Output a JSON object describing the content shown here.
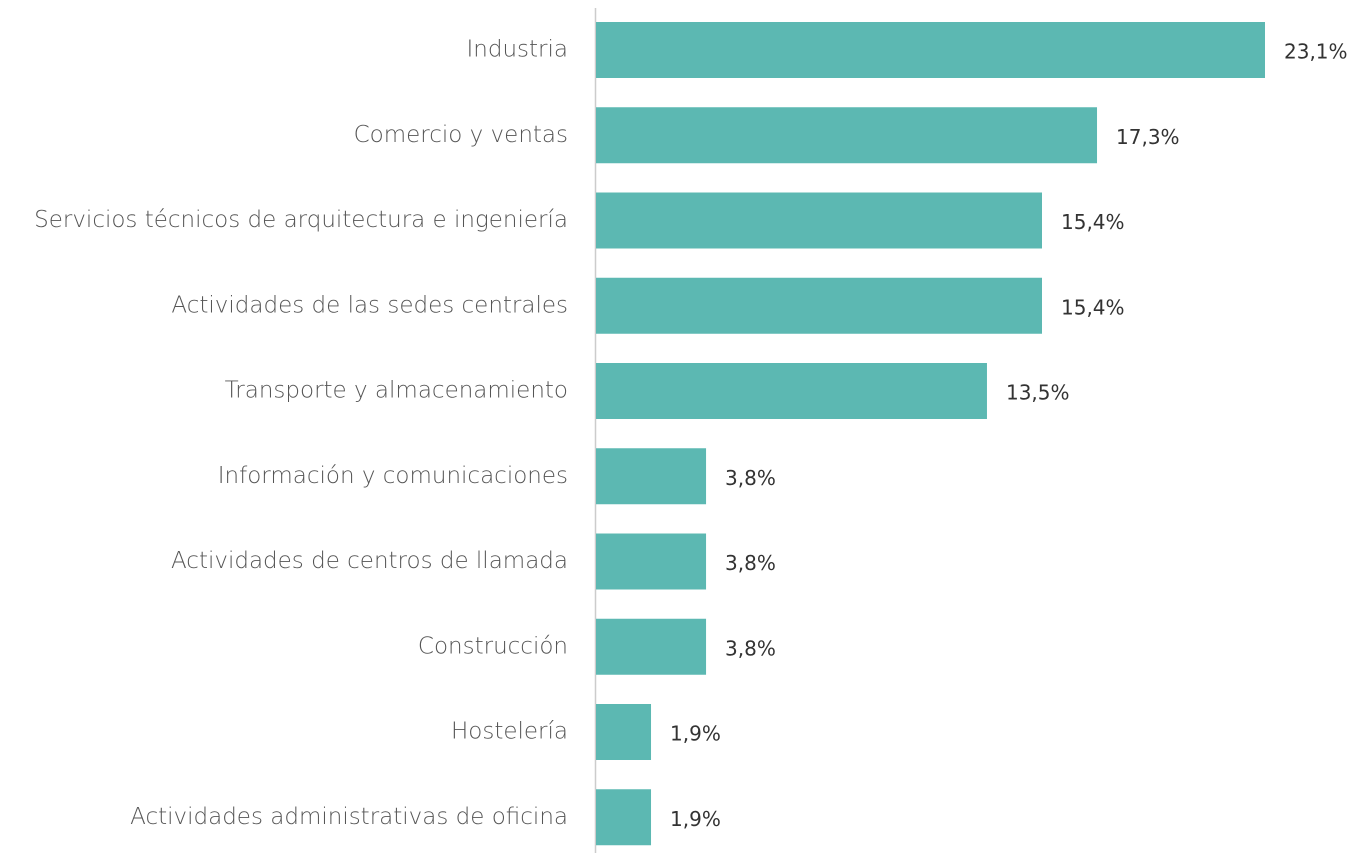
{
  "chart_data": {
    "type": "bar",
    "orientation": "horizontal",
    "categories": [
      "Industria",
      "Comercio y ventas",
      "Servicios técnicos de arquitectura e ingeniería",
      "Actividades de las sedes centrales",
      "Transporte y almacenamiento",
      "Información y comunicaciones",
      "Actividades de centros de llamada",
      "Construcción",
      "Hostelería",
      "Actividades administrativas de oficina"
    ],
    "values": [
      23.1,
      17.3,
      15.4,
      15.4,
      13.5,
      3.8,
      3.8,
      3.8,
      1.9,
      1.9
    ],
    "value_labels": [
      "23,1%",
      "17,3%",
      "15,4%",
      "15,4%",
      "13,5%",
      "3,8%",
      "3,8%",
      "3,8%",
      "1,9%",
      "1,9%"
    ],
    "color": "#5cb8b2"
  }
}
